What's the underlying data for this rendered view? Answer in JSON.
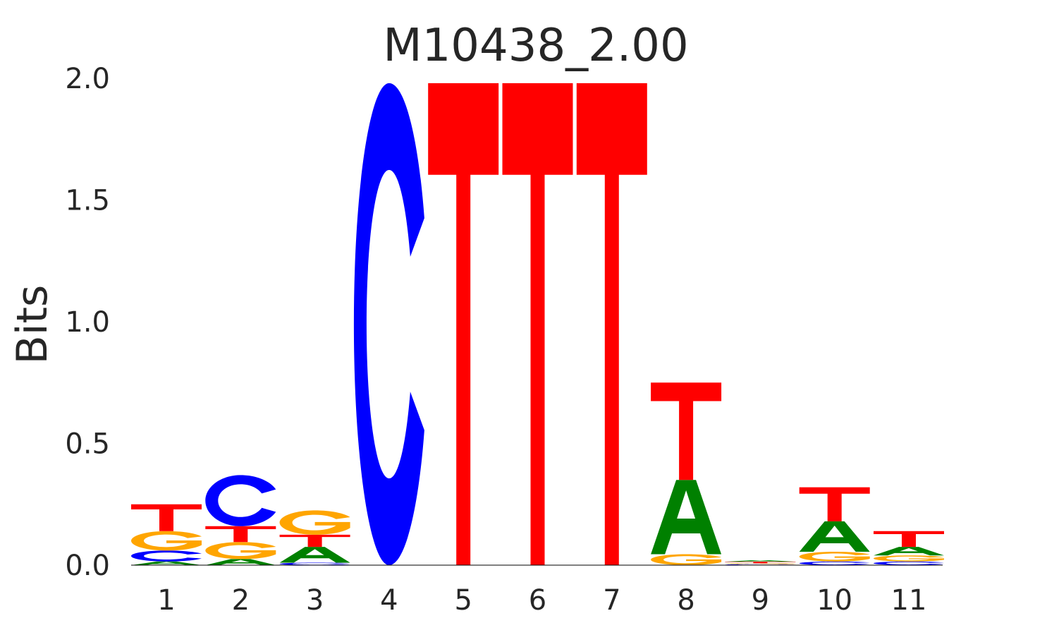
{
  "chart_data": {
    "type": "sequence-logo",
    "title": "M10438_2.00",
    "ylabel": "Bits",
    "ylim": [
      0,
      2.0
    ],
    "yticks": [
      "0.0",
      "0.5",
      "1.0",
      "1.5",
      "2.0"
    ],
    "ytick_values": [
      0,
      0.5,
      1.0,
      1.5,
      2.0
    ],
    "positions": [
      "1",
      "2",
      "3",
      "4",
      "5",
      "6",
      "7",
      "8",
      "9",
      "10",
      "11"
    ],
    "colors": {
      "A": "#008000",
      "C": "#0000ff",
      "G": "#ffa500",
      "T": "#ff0000"
    },
    "columns": [
      [
        {
          "base": "A",
          "bits": 0.015
        },
        {
          "base": "C",
          "bits": 0.045
        },
        {
          "base": "G",
          "bits": 0.08
        },
        {
          "base": "T",
          "bits": 0.11
        }
      ],
      [
        {
          "base": "A",
          "bits": 0.025
        },
        {
          "base": "G",
          "bits": 0.07
        },
        {
          "base": "T",
          "bits": 0.065
        },
        {
          "base": "C",
          "bits": 0.21
        }
      ],
      [
        {
          "base": "C",
          "bits": 0.01
        },
        {
          "base": "A",
          "bits": 0.065
        },
        {
          "base": "T",
          "bits": 0.05
        },
        {
          "base": "G",
          "bits": 0.1
        }
      ],
      [
        {
          "base": "C",
          "bits": 1.98
        }
      ],
      [
        {
          "base": "T",
          "bits": 1.98
        }
      ],
      [
        {
          "base": "T",
          "bits": 1.98
        }
      ],
      [
        {
          "base": "T",
          "bits": 1.98
        }
      ],
      [
        {
          "base": "G",
          "bits": 0.045
        },
        {
          "base": "A",
          "bits": 0.305
        },
        {
          "base": "T",
          "bits": 0.4
        }
      ],
      [
        {
          "base": "C",
          "bits": 0.004
        },
        {
          "base": "G",
          "bits": 0.004
        },
        {
          "base": "T",
          "bits": 0.006
        },
        {
          "base": "A",
          "bits": 0.006
        }
      ],
      [
        {
          "base": "C",
          "bits": 0.015
        },
        {
          "base": "G",
          "bits": 0.04
        },
        {
          "base": "A",
          "bits": 0.125
        },
        {
          "base": "T",
          "bits": 0.14
        }
      ],
      [
        {
          "base": "C",
          "bits": 0.015
        },
        {
          "base": "G",
          "bits": 0.025
        },
        {
          "base": "A",
          "bits": 0.035
        },
        {
          "base": "T",
          "bits": 0.065
        }
      ]
    ]
  }
}
